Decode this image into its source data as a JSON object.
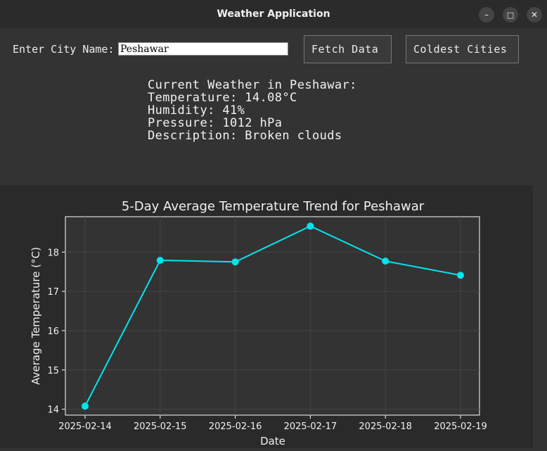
{
  "window": {
    "title": "Weather Application"
  },
  "window_controls": {
    "minimize": "–",
    "maximize": "□",
    "close": "✕"
  },
  "form": {
    "city_label": "Enter City Name:",
    "city_value": "Peshawar",
    "fetch_label": "Fetch Data",
    "coldest_label": "Coldest Cities"
  },
  "weather": {
    "heading": "Current Weather in Peshawar:",
    "temperature": "Temperature: 14.08°C",
    "humidity": "Humidity: 41%",
    "pressure": "Pressure: 1012 hPa",
    "description": "Description: Broken clouds"
  },
  "chart_data": {
    "type": "line",
    "title": "5-Day Average Temperature Trend for Peshawar",
    "xlabel": "Date",
    "ylabel": "Average Temperature (°C)",
    "x": [
      "2025-02-14",
      "2025-02-15",
      "2025-02-16",
      "2025-02-17",
      "2025-02-18",
      "2025-02-19"
    ],
    "values": [
      14.08,
      17.79,
      17.75,
      18.66,
      17.77,
      17.41
    ],
    "ylim": [
      13.85,
      18.9
    ],
    "yticks": [
      14,
      15,
      16,
      17,
      18
    ],
    "grid": true,
    "color": "#00e5ee"
  }
}
